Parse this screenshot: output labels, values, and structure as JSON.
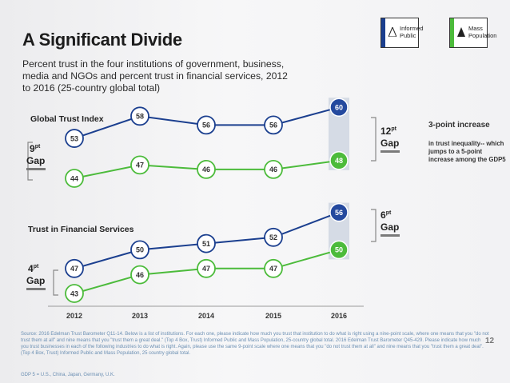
{
  "title": "A Significant Divide",
  "subtitle": "Percent trust in the four institutions of government, business, media and NGOs and percent trust in financial services, 2012 to 2016 (25-country global total)",
  "legend": {
    "informed_label": "Informed Public",
    "mass_label": "Mass Population",
    "informed_color": "#1b3f8f",
    "mass_color": "#4cbb3b"
  },
  "chart_data": {
    "type": "line",
    "categories": [
      "2012",
      "2013",
      "2014",
      "2015",
      "2016"
    ],
    "panels": [
      {
        "title": "Global Trust Index",
        "series": [
          {
            "name": "Informed Public",
            "values": [
              53,
              58,
              56,
              56,
              60
            ]
          },
          {
            "name": "Mass Population",
            "values": [
              44,
              47,
              46,
              46,
              48
            ]
          }
        ],
        "gaps": [
          {
            "num": "9",
            "sup": "pt",
            "word": "Gap"
          },
          {
            "num": "12",
            "sup": "pt",
            "word": "Gap"
          }
        ]
      },
      {
        "title": "Trust in Financial Services",
        "series": [
          {
            "name": "Informed Public",
            "values": [
              47,
              50,
              51,
              52,
              56
            ]
          },
          {
            "name": "Mass Population",
            "values": [
              43,
              46,
              47,
              47,
              50
            ]
          }
        ],
        "gaps": [
          {
            "num": "4",
            "sup": "pt",
            "word": "Gap"
          },
          {
            "num": "6",
            "sup": "pt",
            "word": "Gap"
          }
        ]
      }
    ],
    "colors": {
      "informed": "#1b3f8f",
      "mass": "#4cbb3b",
      "highlight_informed": "#24499e",
      "highlight_mass": "#4cbb3b"
    }
  },
  "note": {
    "title": "3-point increase",
    "body": "in trust inequality-- which jumps to a 5-point increase among the GDP5"
  },
  "source": "Source: 2016 Edelman Trust Barometer Q11-14. Below is a list of institutions. For each one, please indicate how much you trust that institution to do what is right using a nine-point scale, where one means that you \"do not trust them at all\" and nine means that you \"trust them a great deal.\" (Top 4 Box, Trust) Informed Public and Mass Population, 25-country global total. 2016 Edelman Trust Barometer Q45-429. Please indicate how much you trust businesses in each of the following industries to do what is right. Again, please use the same 9-point scale where one means that you \"do not trust them at all\" and nine means that you \"trust them a great deal\". (Top 4 Box, Trust) Informed Public and Mass Population, 25 country global total.",
  "footnote": "GDP 5 = U.S., China, Japan, Germany, U.K.",
  "page_number": "12"
}
